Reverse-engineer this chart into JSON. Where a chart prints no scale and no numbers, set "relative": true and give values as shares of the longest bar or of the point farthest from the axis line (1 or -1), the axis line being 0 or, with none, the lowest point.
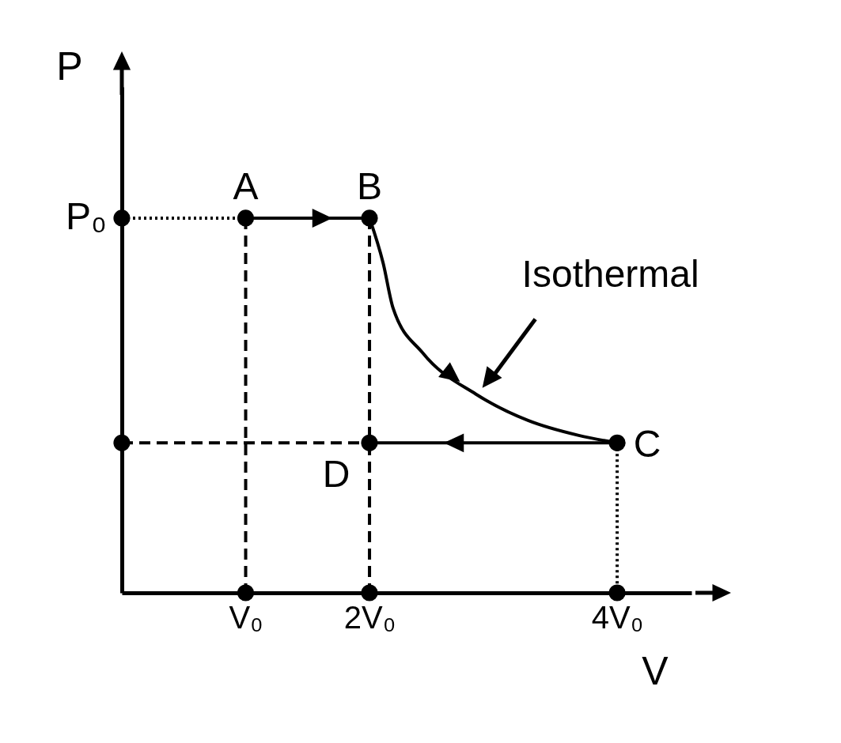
{
  "chart_data": {
    "type": "line",
    "xlabel": "V",
    "ylabel": "P",
    "relative": true,
    "xlim": [
      0,
      4.6
    ],
    "xticks": [
      {
        "value": 1,
        "label": "V₀"
      },
      {
        "value": 2,
        "label": "2V₀"
      },
      {
        "value": 4,
        "label": "4V₀"
      }
    ],
    "series": [
      {
        "color": "#000000",
        "line_style": "solid",
        "x": [
          1,
          2
        ],
        "values": [
          1,
          1
        ]
      },
      {
        "color": "#000000",
        "line_style": "solid",
        "x": [
          2,
          2.11,
          2.19,
          2.43,
          2.86,
          3.28,
          3.69,
          4
        ],
        "values": [
          1,
          0.88,
          0.76,
          0.64,
          0.53,
          0.46,
          0.42,
          0.4
        ]
      },
      {
        "color": "#000000",
        "line_style": "solid",
        "x": [
          4,
          2
        ],
        "values": [
          0.4,
          0.4
        ]
      },
      {
        "color": "#000000",
        "line_style": "dotted",
        "x": [
          0,
          1
        ],
        "values": [
          1,
          1
        ]
      },
      {
        "color": "#000000",
        "line_style": "dashed",
        "x": [
          0,
          2
        ],
        "values": [
          0.4,
          0.4
        ]
      },
      {
        "color": "#000000",
        "line_style": "dashed",
        "x": [
          1,
          1
        ],
        "values": [
          1,
          0
        ]
      },
      {
        "color": "#000000",
        "line_style": "dashed",
        "x": [
          2,
          2
        ],
        "values": [
          1,
          0
        ]
      },
      {
        "color": "#000000",
        "line_style": "dotted",
        "x": [
          4,
          4
        ],
        "values": [
          0.4,
          0
        ]
      },
      {
        "type": "scatter",
        "color": "#000000",
        "marker": "circle",
        "x": [
          1,
          2,
          4,
          2,
          0,
          0,
          1,
          2,
          4
        ],
        "values": [
          1,
          1,
          0.4,
          0.4,
          1,
          0.4,
          0,
          0,
          0
        ]
      }
    ],
    "annotations": [
      {
        "text": "A",
        "x": 1,
        "y": 1
      },
      {
        "text": "B",
        "x": 2,
        "y": 1
      },
      {
        "text": "C",
        "x": 4,
        "y": 0.4
      },
      {
        "text": "D",
        "x": 2,
        "y": 0.4
      },
      {
        "text": "Isothermal",
        "x": 2.86,
        "y": 0.53
      },
      {
        "text": "P₀",
        "x": 0,
        "y": 1
      }
    ]
  }
}
